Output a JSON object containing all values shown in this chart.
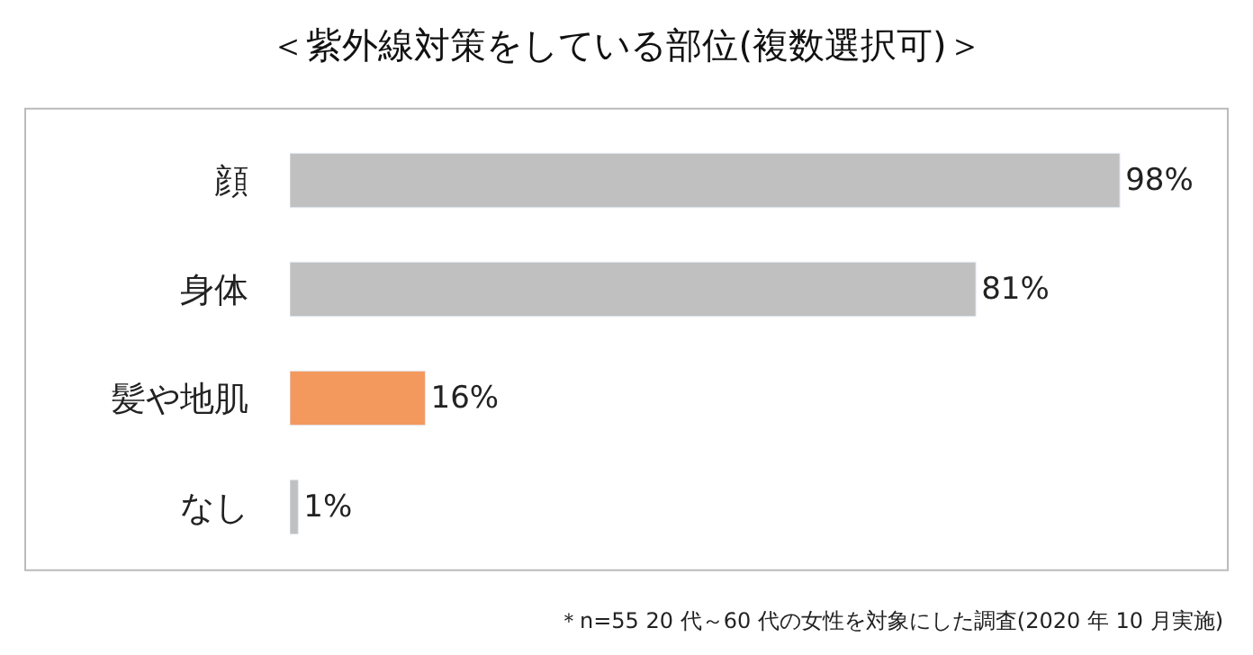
{
  "chart_data": {
    "type": "bar",
    "orientation": "horizontal",
    "title": "＜紫外線対策をしている部位(複数選択可)＞",
    "categories": [
      "顔",
      "身体",
      "髪や地肌",
      "なし"
    ],
    "values": [
      98,
      81,
      16,
      1
    ],
    "colors": [
      "#c0c0c0",
      "#c0c0c0",
      "#f4995e",
      "#c0c0c0"
    ],
    "value_labels": [
      "98%",
      "81%",
      "16%",
      "1%"
    ],
    "annotations": [
      "＊n=55 20 代～60 代の女性を対象にした調査(2020 年 10 月実施)"
    ],
    "legend": false
  }
}
